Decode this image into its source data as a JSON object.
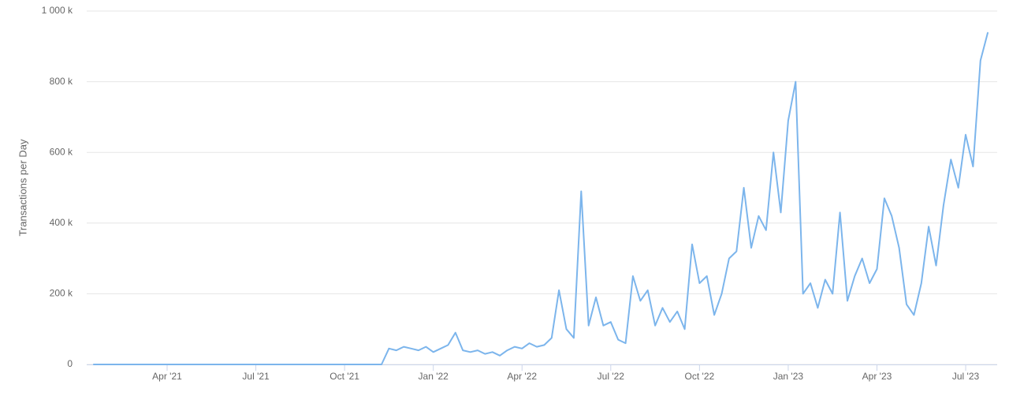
{
  "chart_data": {
    "type": "line",
    "y_label": "Transactions per Day",
    "categories": [
      null,
      null,
      null,
      null,
      null,
      null,
      null,
      null,
      null,
      null,
      "Apr '21",
      null,
      null,
      null,
      null,
      null,
      null,
      null,
      null,
      null,
      null,
      null,
      "Jul '21",
      null,
      null,
      null,
      null,
      null,
      null,
      null,
      null,
      null,
      null,
      null,
      "Oct '21",
      null,
      null,
      null,
      null,
      null,
      null,
      null,
      null,
      null,
      null,
      null,
      "Jan '22",
      null,
      null,
      null,
      null,
      null,
      null,
      null,
      null,
      null,
      null,
      null,
      "Apr '22",
      null,
      null,
      null,
      null,
      null,
      null,
      null,
      null,
      null,
      null,
      null,
      "Jul '22",
      null,
      null,
      null,
      null,
      null,
      null,
      null,
      null,
      null,
      null,
      null,
      "Oct '22",
      null,
      null,
      null,
      null,
      null,
      null,
      null,
      null,
      null,
      null,
      null,
      "Jan '23",
      null,
      null,
      null,
      null,
      null,
      null,
      null,
      null,
      null,
      null,
      null,
      "Apr '23",
      null,
      null,
      null,
      null,
      null,
      null,
      null,
      null,
      null,
      null,
      null,
      "Jul '23",
      null,
      null,
      null
    ],
    "series": [
      {
        "color": "#7cb5ec",
        "values": [
          0,
          0,
          0,
          0,
          0,
          0,
          0,
          0,
          0,
          0,
          0,
          0,
          0,
          0,
          0,
          0,
          0,
          0,
          0,
          0,
          0,
          0,
          0,
          0,
          0,
          0,
          0,
          0,
          0,
          0,
          0,
          0,
          0,
          0,
          0,
          0,
          0,
          0,
          0,
          0,
          45000,
          40000,
          50000,
          45000,
          40000,
          50000,
          35000,
          45000,
          55000,
          90000,
          40000,
          35000,
          40000,
          30000,
          35000,
          25000,
          40000,
          50000,
          45000,
          60000,
          50000,
          55000,
          75000,
          210000,
          100000,
          75000,
          490000,
          110000,
          190000,
          110000,
          120000,
          70000,
          60000,
          250000,
          180000,
          210000,
          110000,
          160000,
          120000,
          150000,
          100000,
          340000,
          230000,
          250000,
          140000,
          200000,
          300000,
          320000,
          500000,
          330000,
          420000,
          380000,
          600000,
          430000,
          690000,
          800000,
          200000,
          230000,
          160000,
          240000,
          200000,
          430000,
          180000,
          250000,
          300000,
          230000,
          270000,
          470000,
          420000,
          330000,
          170000,
          140000,
          230000,
          390000,
          280000,
          450000,
          580000,
          500000,
          650000,
          560000,
          860000,
          940000
        ]
      }
    ],
    "ylim": [
      0,
      1000000
    ],
    "yticks": [
      0,
      {
        "value": 200000,
        "label": "200 k"
      },
      {
        "value": 400000,
        "label": "400 k"
      },
      {
        "value": 600000,
        "label": "600 k"
      },
      {
        "value": 800000,
        "label": "800 k"
      },
      {
        "value": 1000000,
        "label": "1 000 k"
      }
    ],
    "grid": true
  }
}
